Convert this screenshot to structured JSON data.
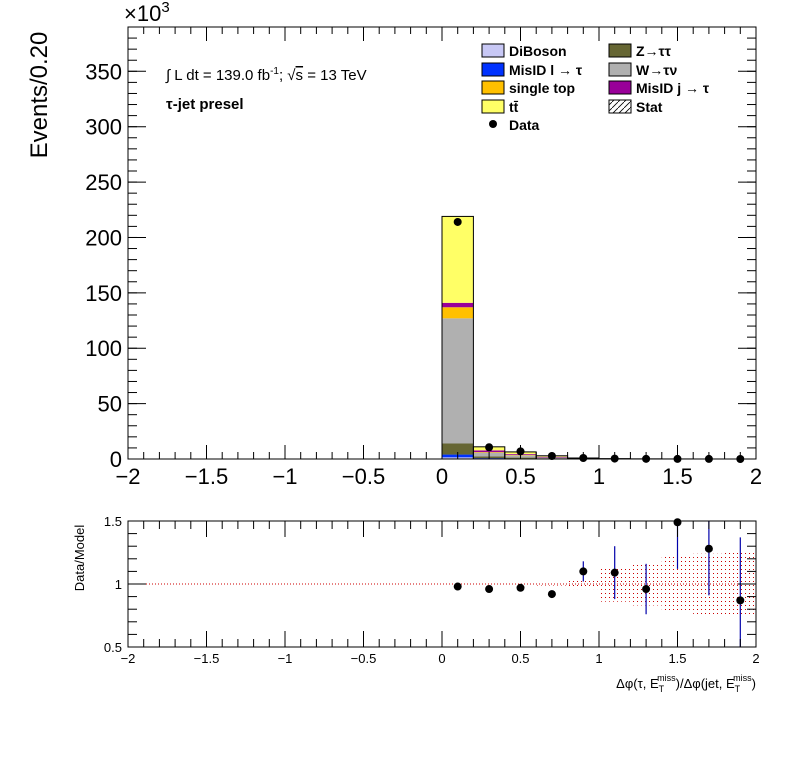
{
  "chart_data": [
    {
      "type": "bar",
      "stacked": true,
      "ylabel": "Events/0.20",
      "y_multiplier": "×10",
      "y_multiplier_exp": "3",
      "xlim": [
        -2,
        2
      ],
      "ylim": [
        0,
        390
      ],
      "xticks": [
        "−2",
        "−1.5",
        "−1",
        "−0.5",
        "0",
        "0.5",
        "1",
        "1.5",
        "2"
      ],
      "xtick_values": [
        -2,
        -1.5,
        -1,
        -0.5,
        0,
        0.5,
        1,
        1.5,
        2
      ],
      "yticks": [
        "0",
        "50",
        "100",
        "150",
        "200",
        "250",
        "300",
        "350"
      ],
      "ytick_values": [
        0,
        50,
        100,
        150,
        200,
        250,
        300,
        350
      ],
      "annotation_lumi": {
        "prefix": "∫ L dt = 139.0 fb",
        "sup": "-1",
        "mid": ";  √",
        "s": "s",
        "suffix": " = 13 TeV"
      },
      "annotation_region": "τ-jet presel",
      "bin_edges": [
        0,
        0.2,
        0.4,
        0.6,
        0.8,
        1.0,
        1.2,
        1.4,
        1.6,
        1.8,
        2.0
      ],
      "series": [
        {
          "name": "DiBoson",
          "color": "#c8c8f5",
          "values": [
            1.5,
            0.3,
            0.2,
            0.1,
            0.05,
            0.02,
            0.01,
            0.01,
            0,
            0
          ]
        },
        {
          "name": "MisID l → τ",
          "color": "#0032ff",
          "values": [
            2.5,
            0.5,
            0.3,
            0.1,
            0.05,
            0.02,
            0.01,
            0,
            0,
            0
          ]
        },
        {
          "name": "Z→ττ",
          "color": "#666633",
          "values": [
            10,
            1.5,
            0.8,
            0.3,
            0.1,
            0.05,
            0.02,
            0.01,
            0,
            0
          ]
        },
        {
          "name": "W→τν",
          "color": "#b0b0b0",
          "values": [
            113,
            3.5,
            2.0,
            0.8,
            0.2,
            0.08,
            0.03,
            0.01,
            0.01,
            0
          ]
        },
        {
          "name": "single top",
          "color": "#ffc000",
          "values": [
            10,
            0.5,
            0.3,
            0.1,
            0.05,
            0.02,
            0.01,
            0,
            0,
            0
          ]
        },
        {
          "name": "MisID j → τ",
          "color": "#990099",
          "values": [
            4,
            1.5,
            0.8,
            0.6,
            0.2,
            0.05,
            0.02,
            0.01,
            0,
            0
          ]
        },
        {
          "name": "tt̄",
          "color": "#ffff66",
          "values": [
            78,
            3.2,
            2.0,
            0.9,
            0.25,
            0.1,
            0.04,
            0.02,
            0.01,
            0
          ]
        }
      ],
      "data_points": {
        "name": "Data",
        "x": [
          0.1,
          0.3,
          0.5,
          0.7,
          0.9,
          1.1,
          1.3,
          1.5,
          1.7,
          1.9
        ],
        "y": [
          214,
          10.6,
          6.9,
          2.7,
          0.9,
          0.38,
          0.14,
          0.09,
          0.06,
          0.01
        ]
      },
      "stat_label": "Stat",
      "legend": {
        "placement": "top-right",
        "columns": [
          [
            "DiBoson",
            "MisID l → τ",
            "single top",
            "tt̄",
            "Data"
          ],
          [
            "Z→ττ",
            "W→τν",
            "MisID j → τ",
            "Stat"
          ]
        ]
      }
    },
    {
      "type": "scatter",
      "ylabel": "Data/Model",
      "xlabel": "Δφ(τ, E_T^miss)/Δφ(jet, E_T^miss)",
      "xlim": [
        -2,
        2
      ],
      "ylim": [
        0.5,
        1.5
      ],
      "xticks": [
        "−2",
        "−1.5",
        "−1",
        "−0.5",
        "0",
        "0.5",
        "1",
        "1.5",
        "2"
      ],
      "xtick_values": [
        -2,
        -1.5,
        -1,
        -0.5,
        0,
        0.5,
        1,
        1.5,
        2
      ],
      "yticks": [
        "0.5",
        "1",
        "1.5"
      ],
      "ytick_values": [
        0.5,
        1,
        1.5
      ],
      "reference_line": 1,
      "x": [
        0.1,
        0.3,
        0.5,
        0.7,
        0.9,
        1.1,
        1.3,
        1.5,
        1.7,
        1.9
      ],
      "y": [
        0.98,
        0.96,
        0.97,
        0.92,
        1.1,
        1.09,
        0.96,
        1.49,
        1.28,
        0.87
      ],
      "yerr": [
        0.005,
        0.02,
        0.02,
        0.03,
        0.08,
        0.21,
        0.2,
        0.37,
        0.37,
        0.5
      ],
      "stat_band": [
        0.003,
        0.004,
        0.007,
        0.012,
        0.04,
        0.14,
        0.17,
        0.22,
        0.24,
        0.25
      ]
    }
  ]
}
